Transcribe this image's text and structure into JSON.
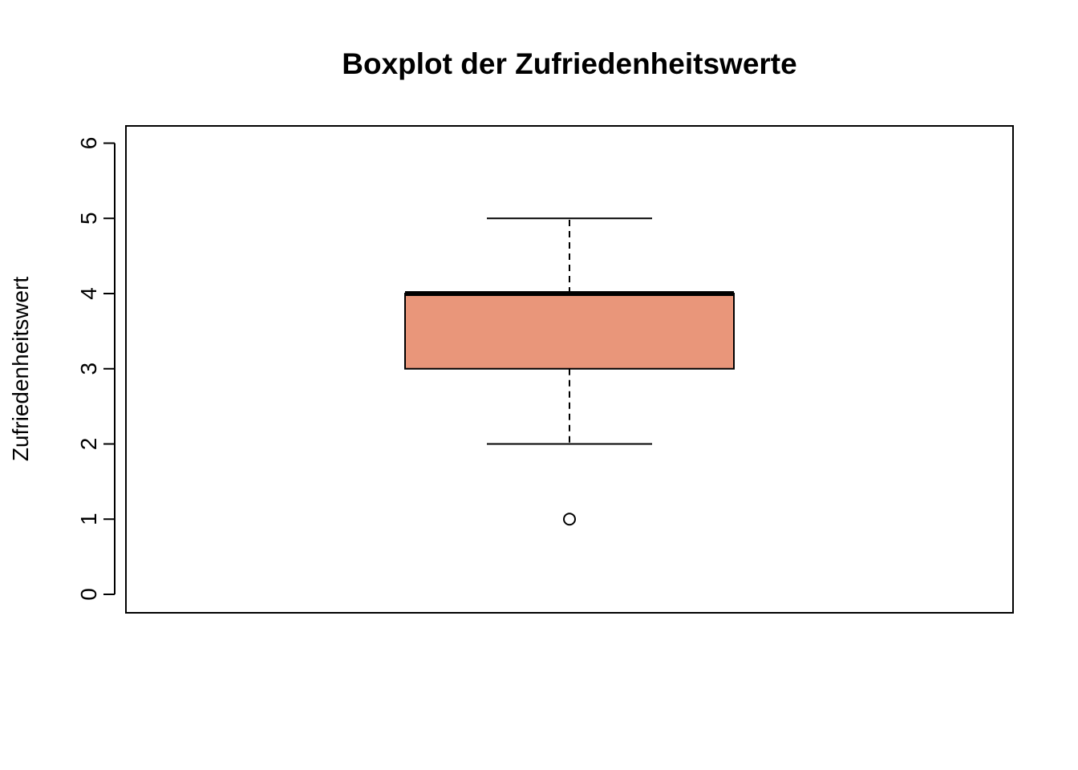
{
  "chart_data": {
    "type": "box",
    "title": "Boxplot der Zufriedenheitswerte",
    "xlabel": "",
    "ylabel": "Zufriedenheitswert",
    "ylim": [
      0,
      6
    ],
    "yticks": [
      0,
      1,
      2,
      3,
      4,
      5,
      6
    ],
    "grid": false,
    "legend": "none",
    "series": [
      {
        "name": "Zufriedenheitswert",
        "whisker_low": 2,
        "q1": 3,
        "median": 4,
        "q3": 4,
        "whisker_high": 5,
        "outliers": [
          1
        ],
        "fill_color": "#E9967A"
      }
    ]
  }
}
